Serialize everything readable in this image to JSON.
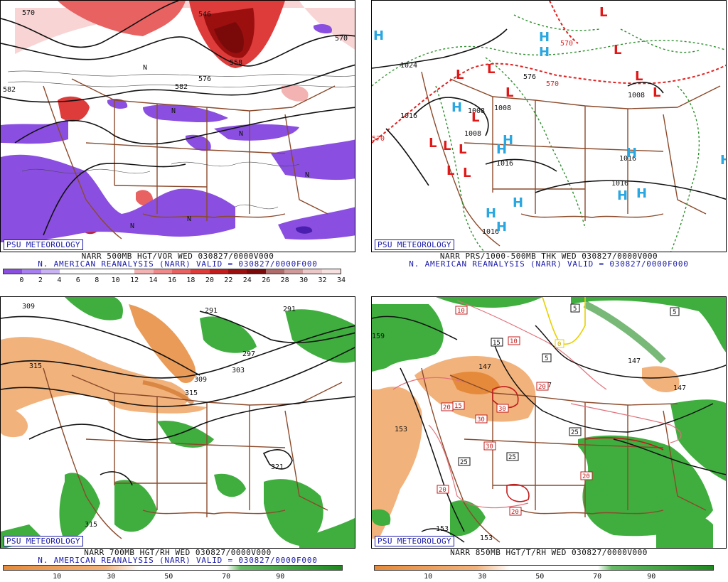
{
  "brand": "PSU METEOROLOGY",
  "panels": [
    {
      "id": "p1",
      "caption1": "NARR 500MB HGT/VOR WED 030827/0000V000",
      "caption2": "N. AMERICAN REANALYSIS (NARR) VALID = 030827/0000F000",
      "colorbar": [
        "#8a4fe0",
        "#a77ff0",
        "#c9b3f5",
        "#ffffff",
        "#ffffff",
        "#ffffff",
        "#ffffff",
        "#f3b3b3",
        "#ee8a8a",
        "#e86262",
        "#de3b3b",
        "#c21c1c",
        "#9c0f0f",
        "#7a0a0a",
        "#b06b6b",
        "#d09a9a",
        "#ecc7c7",
        "#f6e0e0"
      ],
      "ticks": [
        "0",
        "2",
        "4",
        "6",
        "8",
        "10",
        "12",
        "14",
        "16",
        "18",
        "20",
        "22",
        "24",
        "26",
        "28",
        "30",
        "32",
        "34"
      ],
      "contour_labels": [
        "570",
        "570",
        "546",
        "582",
        "582",
        "558",
        "576",
        "N",
        "N",
        "N",
        "N",
        "N",
        "N"
      ]
    },
    {
      "id": "p2",
      "caption1": "NARR PRS/1000-500MB THK WED 030827/0000V000",
      "caption2": "N. AMERICAN REANALYSIS (NARR) VALID = 030827/0000F000",
      "contour_labels": [
        "1024",
        "1016",
        "1008",
        "1008",
        "1008",
        "1016",
        "1016",
        "1016",
        "570",
        "570",
        "1008",
        "1016",
        "576",
        "570"
      ],
      "highs": [
        "H",
        "H",
        "H",
        "H",
        "H",
        "H",
        "H",
        "H",
        "H",
        "H",
        "H",
        "H",
        "H"
      ],
      "lows": [
        "L",
        "L",
        "L",
        "L",
        "L",
        "L",
        "L",
        "L",
        "L",
        "L",
        "L",
        "L",
        "L"
      ]
    },
    {
      "id": "p3",
      "caption1": "NARR 700MB HGT/RH WED 030827/0000V000",
      "caption2": "N. AMERICAN REANALYSIS (NARR) VALID = 030827/0000F000",
      "rh_ticks": [
        "10",
        "30",
        "50",
        "70",
        "90"
      ],
      "contour_labels": [
        "309",
        "291",
        "291",
        "297",
        "303",
        "309",
        "315",
        "315",
        "315",
        "321"
      ]
    },
    {
      "id": "p4",
      "caption1": "NARR 850MB HGT/T/RH WED 030827/0000V000",
      "rh_ticks": [
        "10",
        "30",
        "50",
        "70",
        "90"
      ],
      "contour_labels": [
        "159",
        "153",
        "153",
        "153",
        "147",
        "147",
        "147",
        "147"
      ],
      "temp_labels": [
        "10",
        "10",
        "15",
        "15",
        "20",
        "20",
        "20",
        "20",
        "20",
        "25",
        "25",
        "25",
        "30",
        "30",
        "30",
        "5",
        "5",
        "5",
        "0"
      ]
    }
  ]
}
